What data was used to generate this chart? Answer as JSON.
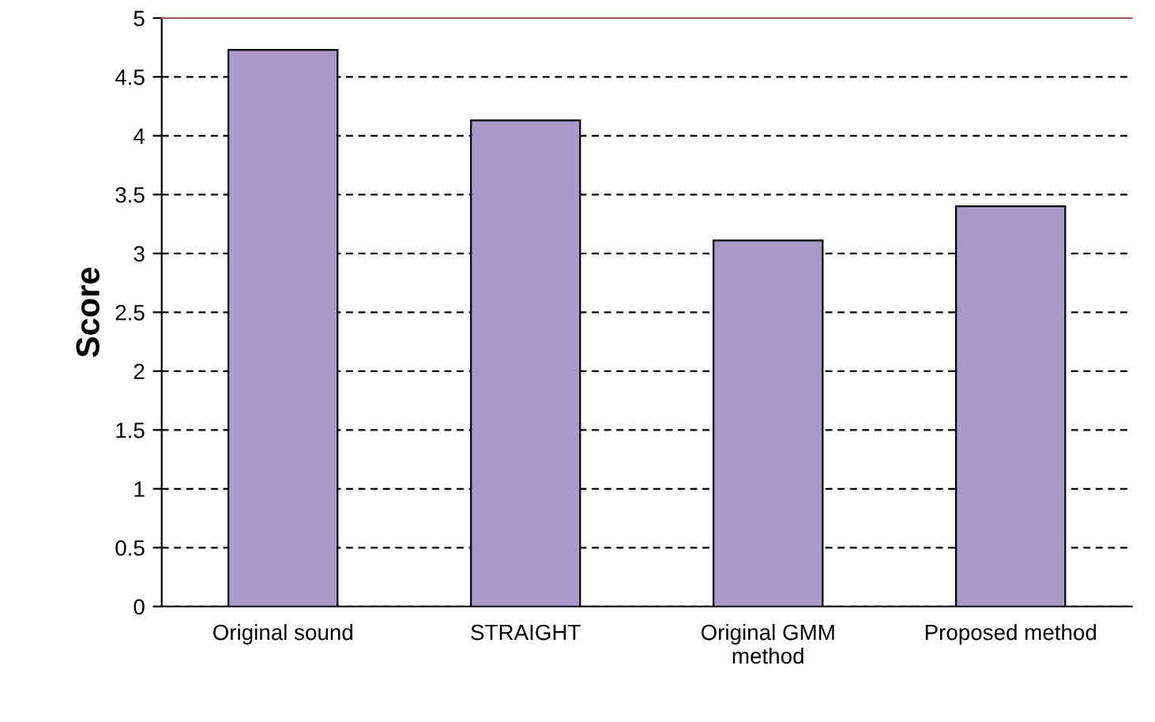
{
  "chart_data": {
    "type": "bar",
    "ylabel": "Score",
    "categories": [
      "Original sound",
      "STRAIGHT",
      "Original GMM\nmethod",
      "Proposed method"
    ],
    "values": [
      4.73,
      4.13,
      3.11,
      3.4
    ],
    "color": "#aa9acc",
    "ylim": [
      0,
      5
    ],
    "yticks": [
      0,
      0.5,
      1,
      1.5,
      2,
      2.5,
      3,
      3.5,
      4,
      4.5,
      5
    ],
    "grid": "y"
  }
}
